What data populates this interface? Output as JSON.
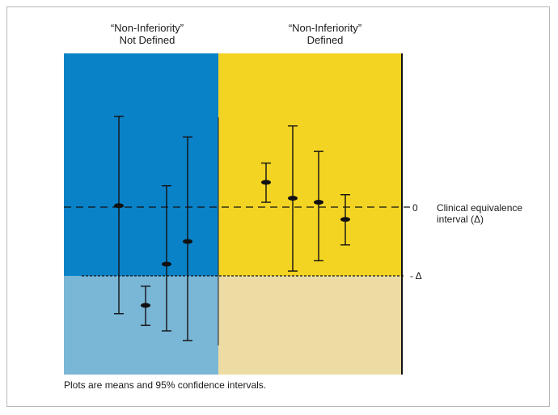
{
  "headers": {
    "left": {
      "line1": "“Non-Inferiority”",
      "line2": "Not Defined"
    },
    "right": {
      "line1": "“Non-Inferiority”",
      "line2": "Defined"
    }
  },
  "labels": {
    "zero": "0",
    "delta": "- Δ",
    "clinical_line1": "Clinical equivalence",
    "clinical_line2": "interval (Δ)"
  },
  "caption": "Plots are means and 95% confidence intervals.",
  "colors": {
    "blue": "#0a82c8",
    "light_blue": "#7ab6d6",
    "yellow": "#f4d423",
    "tan": "#ecdca4",
    "ink": "#111111"
  },
  "chart_data": {
    "type": "scatter",
    "y_scale": "relative to zero line (0) and margin (-Δ = -1)",
    "zero": 0,
    "margin": -1,
    "groups": [
      {
        "region": "left",
        "points": [
          {
            "mean": 0.02,
            "lower": -1.55,
            "upper": 1.32
          },
          {
            "mean": -1.43,
            "lower": -1.72,
            "upper": -1.15
          },
          {
            "mean": -0.83,
            "lower": -1.8,
            "upper": 0.31
          },
          {
            "mean": -0.5,
            "lower": -1.94,
            "upper": 1.02
          }
        ]
      },
      {
        "region": "right",
        "points": [
          {
            "mean": 0.36,
            "lower": 0.07,
            "upper": 0.64
          },
          {
            "mean": 0.13,
            "lower": -0.93,
            "upper": 1.18
          },
          {
            "mean": 0.07,
            "lower": -0.78,
            "upper": 0.81
          },
          {
            "mean": -0.18,
            "lower": -0.55,
            "upper": 0.18
          }
        ]
      }
    ]
  }
}
